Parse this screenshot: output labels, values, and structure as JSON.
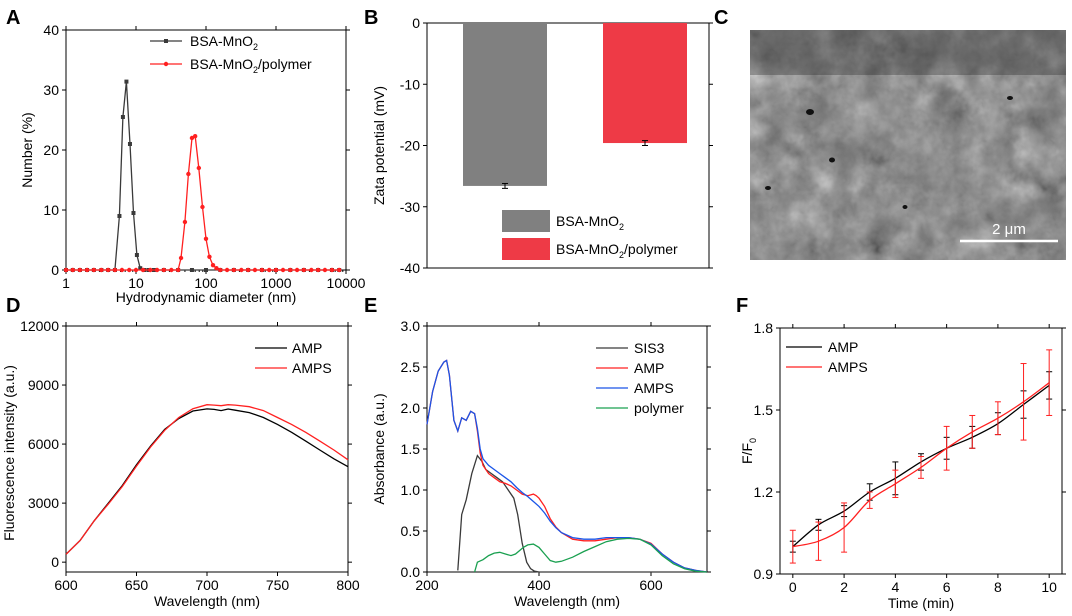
{
  "colors": {
    "black": "#000000",
    "gray": "#3a3a3a",
    "red": "#ff2020",
    "blue": "#1a55e8",
    "green": "#1aa050",
    "bar_gray": "#808080",
    "bar_red": "#ee3a46",
    "sem_bg": "#6e6e6e"
  },
  "panels": {
    "A": "A",
    "B": "B",
    "C": "C",
    "D": "D",
    "E": "E",
    "F": "F"
  },
  "sem_image": {
    "scale_label": "2 μm"
  },
  "chart_data": [
    {
      "id": "A",
      "type": "line",
      "xscale": "log",
      "xlim": [
        1,
        10000
      ],
      "ylim": [
        0,
        40
      ],
      "xticks": [
        1,
        10,
        100,
        1000,
        10000
      ],
      "xtick_labels": [
        "1",
        "10",
        "100",
        "1000",
        "10000"
      ],
      "yticks": [
        0,
        10,
        20,
        30,
        40
      ],
      "ytick_labels": [
        "0",
        "10",
        "20",
        "30",
        "40"
      ],
      "xlabel": "Hydrodynamic diameter (nm)",
      "ylabel": "Number (%)",
      "legend_placement": "top-center",
      "series": [
        {
          "name": "BSA-MnO2",
          "label_main": "BSA-MnO",
          "label_sub": "2",
          "label_tail": "",
          "color_key": "gray",
          "marker": "square",
          "x": [
            1.0,
            1.25,
            1.58,
            2.0,
            2.5,
            3.2,
            4.0,
            5.0,
            5.8,
            6.5,
            7.3,
            8.2,
            9.2,
            10.3,
            11.5,
            13.0,
            15.0,
            18.0,
            25,
            40,
            63,
            100,
            160,
            250,
            400,
            630,
            1000,
            1600,
            2500,
            4000,
            6300,
            8000
          ],
          "y": [
            0,
            0,
            0,
            0,
            0,
            0,
            0,
            0,
            9,
            25.5,
            31.4,
            21,
            9.5,
            2.5,
            0.3,
            0,
            0,
            0,
            0,
            0,
            0,
            0,
            0,
            0,
            0,
            0,
            0,
            0,
            0,
            0,
            0,
            0
          ]
        },
        {
          "name": "BSA-MnO2/polymer",
          "label_main": "BSA-MnO",
          "label_sub": "2",
          "label_tail": "/polymer",
          "color_key": "red",
          "marker": "circle",
          "x": [
            1.0,
            1.25,
            1.58,
            2.0,
            2.5,
            3.2,
            4.0,
            5.0,
            6.3,
            8.0,
            10,
            12.6,
            16,
            20,
            25,
            32,
            40,
            44,
            50,
            56,
            63,
            70,
            79,
            89,
            100,
            112,
            126,
            141,
            160,
            200,
            250,
            320,
            400,
            500,
            630,
            800,
            1000,
            1260,
            1600,
            2000,
            2500,
            3200,
            4000,
            5000,
            6300,
            8000
          ],
          "y": [
            0,
            0,
            0,
            0,
            0,
            0,
            0,
            0,
            0,
            0,
            0,
            0,
            0,
            0,
            0,
            0,
            0,
            2,
            8,
            16,
            22,
            22.3,
            17,
            10.5,
            5.2,
            2.2,
            0.8,
            0.3,
            0,
            0,
            0,
            0,
            0,
            0,
            0,
            0,
            0,
            0,
            0,
            0,
            0,
            0,
            0,
            0,
            0,
            0
          ]
        }
      ]
    },
    {
      "id": "B",
      "type": "bar",
      "ylim": [
        -40,
        0
      ],
      "yticks": [
        0,
        -10,
        -20,
        -30,
        -40
      ],
      "ytick_labels": [
        "0",
        "-10",
        "-20",
        "-30",
        "-40"
      ],
      "ylabel": "Zata potential (mV)",
      "legend_placement": "bottom-right",
      "categories": [
        "BSA-MnO2",
        "BSA-MnO2/polymer"
      ],
      "values": [
        -26.6,
        -19.6
      ],
      "errors": [
        0.4,
        0.4
      ],
      "bar_color_keys": [
        "bar_gray",
        "bar_red"
      ],
      "legend": [
        {
          "label_main": "BSA-MnO",
          "label_sub": "2",
          "label_tail": ""
        },
        {
          "label_main": "BSA-MnO",
          "label_sub": "2",
          "label_tail": "/polymer"
        }
      ]
    },
    {
      "id": "D",
      "type": "line",
      "xlim": [
        600,
        800
      ],
      "ylim": [
        -500,
        12000
      ],
      "xticks": [
        600,
        650,
        700,
        750,
        800
      ],
      "xtick_labels": [
        "600",
        "650",
        "700",
        "750",
        "800"
      ],
      "yticks": [
        0,
        3000,
        6000,
        9000,
        12000
      ],
      "ytick_labels": [
        "0",
        "3000",
        "6000",
        "9000",
        "12000"
      ],
      "xlabel": "Wavelength (nm)",
      "ylabel": "Fluorescence intensity (a.u.)",
      "legend_placement": "top-right",
      "series": [
        {
          "name": "AMP",
          "color_key": "black",
          "x": [
            600,
            610,
            620,
            630,
            640,
            650,
            660,
            670,
            680,
            690,
            700,
            705,
            710,
            715,
            720,
            730,
            740,
            750,
            760,
            770,
            780,
            790,
            800
          ],
          "y": [
            400,
            1100,
            2100,
            3000,
            3900,
            4950,
            5900,
            6750,
            7300,
            7680,
            7790,
            7760,
            7700,
            7780,
            7720,
            7600,
            7350,
            7000,
            6600,
            6150,
            5700,
            5250,
            4850
          ]
        },
        {
          "name": "AMPS",
          "color_key": "red",
          "x": [
            600,
            610,
            620,
            630,
            640,
            650,
            660,
            670,
            680,
            690,
            700,
            705,
            710,
            715,
            720,
            730,
            740,
            750,
            760,
            770,
            780,
            790,
            800
          ],
          "y": [
            400,
            1100,
            2100,
            2950,
            3850,
            4880,
            5850,
            6700,
            7350,
            7800,
            8000,
            7980,
            7950,
            8000,
            7980,
            7900,
            7700,
            7350,
            7000,
            6600,
            6150,
            5700,
            5200
          ]
        }
      ]
    },
    {
      "id": "E",
      "type": "line",
      "xlim": [
        200,
        700
      ],
      "ylim": [
        0,
        3.0
      ],
      "xticks": [
        200,
        400,
        600
      ],
      "xtick_labels": [
        "200",
        "400",
        "600"
      ],
      "yticks": [
        0.0,
        0.5,
        1.0,
        1.5,
        2.0,
        2.5,
        3.0
      ],
      "ytick_labels": [
        "0.0",
        "0.5",
        "1.0",
        "1.5",
        "2.0",
        "2.5",
        "3.0"
      ],
      "xlabel": "Wavelength (nm)",
      "ylabel": "Absorbance (a.u.)",
      "legend_placement": "top-right",
      "series": [
        {
          "name": "SIS3",
          "color_key": "gray",
          "x": [
            255,
            262,
            270,
            280,
            290,
            298,
            305,
            315,
            325,
            335,
            345,
            355,
            362,
            370,
            378,
            385,
            392,
            400,
            450,
            500,
            550,
            600,
            650,
            700
          ],
          "y": [
            0.02,
            0.7,
            0.88,
            1.2,
            1.42,
            1.35,
            1.25,
            1.2,
            1.15,
            1.1,
            1.0,
            0.9,
            0.7,
            0.35,
            0.12,
            0.04,
            0.01,
            0.0,
            0.0,
            0.0,
            0.0,
            0.0,
            0.0,
            0.0
          ]
        },
        {
          "name": "AMP",
          "color_key": "red",
          "x": [
            200,
            210,
            220,
            230,
            235,
            240,
            248,
            255,
            262,
            270,
            278,
            285,
            290,
            295,
            300,
            310,
            320,
            330,
            340,
            350,
            360,
            370,
            380,
            390,
            395,
            400,
            410,
            420,
            430,
            440,
            460,
            480,
            500,
            520,
            540,
            560,
            580,
            600,
            620,
            640,
            660,
            680,
            700
          ],
          "y": [
            1.8,
            2.2,
            2.45,
            2.56,
            2.58,
            2.4,
            1.85,
            1.72,
            1.88,
            1.85,
            1.96,
            1.93,
            1.72,
            1.45,
            1.3,
            1.2,
            1.15,
            1.1,
            1.08,
            1.05,
            1.0,
            0.95,
            0.93,
            0.95,
            0.93,
            0.9,
            0.8,
            0.65,
            0.55,
            0.48,
            0.4,
            0.38,
            0.38,
            0.4,
            0.42,
            0.42,
            0.4,
            0.35,
            0.22,
            0.12,
            0.05,
            0.02,
            0.0
          ]
        },
        {
          "name": "AMPS",
          "color_key": "blue",
          "x": [
            200,
            210,
            220,
            230,
            235,
            240,
            248,
            255,
            262,
            270,
            278,
            285,
            290,
            295,
            300,
            310,
            320,
            330,
            340,
            350,
            360,
            370,
            380,
            390,
            400,
            410,
            420,
            430,
            440,
            460,
            480,
            500,
            520,
            540,
            560,
            580,
            600,
            620,
            640,
            660,
            680,
            700
          ],
          "y": [
            1.8,
            2.2,
            2.45,
            2.56,
            2.58,
            2.4,
            1.85,
            1.72,
            1.88,
            1.85,
            1.96,
            1.93,
            1.75,
            1.5,
            1.38,
            1.3,
            1.25,
            1.2,
            1.15,
            1.1,
            1.03,
            0.97,
            0.92,
            0.86,
            0.8,
            0.72,
            0.62,
            0.54,
            0.48,
            0.42,
            0.4,
            0.4,
            0.42,
            0.42,
            0.42,
            0.4,
            0.34,
            0.22,
            0.12,
            0.05,
            0.02,
            0.0
          ]
        },
        {
          "name": "polymer",
          "color_key": "green",
          "x": [
            285,
            290,
            300,
            310,
            320,
            330,
            340,
            350,
            358,
            365,
            372,
            380,
            390,
            400,
            410,
            420,
            430,
            440,
            460,
            480,
            500,
            520,
            540,
            560,
            580,
            600,
            620,
            640,
            660,
            680,
            700
          ],
          "y": [
            0.0,
            0.12,
            0.15,
            0.2,
            0.23,
            0.24,
            0.22,
            0.2,
            0.22,
            0.26,
            0.3,
            0.33,
            0.34,
            0.3,
            0.22,
            0.14,
            0.12,
            0.13,
            0.18,
            0.25,
            0.31,
            0.37,
            0.4,
            0.41,
            0.4,
            0.33,
            0.2,
            0.1,
            0.04,
            0.01,
            0.0
          ]
        }
      ]
    },
    {
      "id": "F",
      "type": "line",
      "xlim": [
        -0.5,
        10.5
      ],
      "ylim": [
        0.9,
        1.8
      ],
      "xticks": [
        0,
        2,
        4,
        6,
        8,
        10
      ],
      "xtick_labels": [
        "0",
        "2",
        "4",
        "6",
        "8",
        "10"
      ],
      "yticks": [
        0.9,
        1.2,
        1.5,
        1.8
      ],
      "ytick_labels": [
        "0.9",
        "1.2",
        "1.5",
        "1.8"
      ],
      "xlabel": "Time (min)",
      "ylabel_main": "F/F",
      "ylabel_sub": "0",
      "legend_placement": "top-left",
      "series": [
        {
          "name": "AMP",
          "color_key": "black",
          "x": [
            0,
            1,
            2,
            3,
            4,
            5,
            6,
            7,
            8,
            9,
            10
          ],
          "y": [
            1.0,
            1.08,
            1.13,
            1.2,
            1.25,
            1.31,
            1.36,
            1.4,
            1.45,
            1.52,
            1.59
          ],
          "err": [
            0.02,
            0.02,
            0.02,
            0.03,
            0.06,
            0.03,
            0.04,
            0.04,
            0.04,
            0.05,
            0.05
          ]
        },
        {
          "name": "AMPS",
          "color_key": "red",
          "x": [
            0,
            1,
            2,
            3,
            4,
            5,
            6,
            7,
            8,
            9,
            10
          ],
          "y": [
            1.0,
            1.02,
            1.07,
            1.17,
            1.23,
            1.29,
            1.36,
            1.42,
            1.47,
            1.53,
            1.6
          ],
          "err": [
            0.06,
            0.07,
            0.09,
            0.03,
            0.05,
            0.04,
            0.08,
            0.06,
            0.06,
            0.14,
            0.12
          ]
        }
      ]
    }
  ]
}
